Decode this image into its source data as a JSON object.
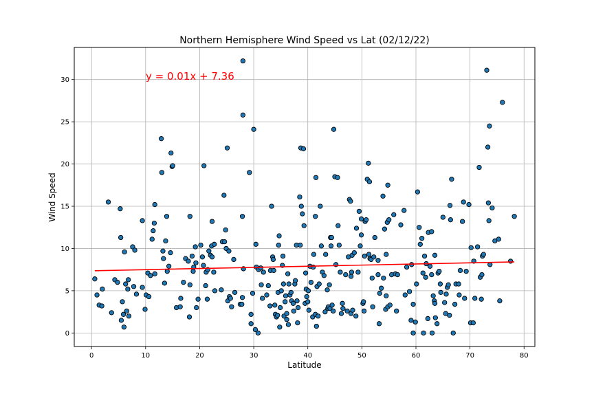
{
  "chart_data": {
    "type": "scatter",
    "title": "Northern Hemisphere Wind Speed vs Lat (02/12/22)",
    "xlabel": "Latitude",
    "ylabel": "Wind Speed",
    "xlim": [
      -3.2,
      82
    ],
    "ylim": [
      -1.6,
      33.8
    ],
    "xticks": [
      0,
      10,
      20,
      30,
      40,
      50,
      60,
      70,
      80
    ],
    "yticks": [
      0,
      5,
      10,
      15,
      20,
      25,
      30
    ],
    "grid": true,
    "marker_color": "#1f77b4",
    "marker_edge_color": "#000000",
    "regression": {
      "equation": "y = 0.01x + 7.36",
      "slope": 0.0135,
      "intercept": 7.36,
      "x_range": [
        0.6,
        78.2
      ],
      "color": "#ff0000"
    },
    "points": [
      [
        0.6,
        6.4
      ],
      [
        1,
        4.5
      ],
      [
        1.4,
        3.3
      ],
      [
        1.9,
        3.2
      ],
      [
        2,
        5.2
      ],
      [
        3.1,
        15.5
      ],
      [
        3.7,
        2.4
      ],
      [
        4.3,
        6.3
      ],
      [
        4.8,
        6
      ],
      [
        5.3,
        14.7
      ],
      [
        5.4,
        11.3
      ],
      [
        5.5,
        1.5
      ],
      [
        5.7,
        3.7
      ],
      [
        5.9,
        2.2
      ],
      [
        6,
        0.7
      ],
      [
        6.1,
        9.6
      ],
      [
        6.3,
        5.8
      ],
      [
        6.5,
        2.6
      ],
      [
        6.7,
        5.2
      ],
      [
        6.8,
        6.3
      ],
      [
        6.9,
        2
      ],
      [
        7.6,
        10.2
      ],
      [
        7.8,
        5.5
      ],
      [
        8,
        9.8
      ],
      [
        8.3,
        4.6
      ],
      [
        9.4,
        13.3
      ],
      [
        9.4,
        5.4
      ],
      [
        9.9,
        2.8
      ],
      [
        10.1,
        4.5
      ],
      [
        10.4,
        7.1
      ],
      [
        10.6,
        4.3
      ],
      [
        10.9,
        6.8
      ],
      [
        11.2,
        11.1
      ],
      [
        11.4,
        12.1
      ],
      [
        11.6,
        13
      ],
      [
        11.7,
        15.2
      ],
      [
        11.7,
        7
      ],
      [
        12.9,
        23
      ],
      [
        13,
        19
      ],
      [
        13.2,
        9.7
      ],
      [
        13.3,
        8.8
      ],
      [
        13.5,
        5.9
      ],
      [
        13.7,
        10.9
      ],
      [
        13.9,
        13.8
      ],
      [
        14,
        7.3
      ],
      [
        14.3,
        7.9
      ],
      [
        14.6,
        9.5
      ],
      [
        14.7,
        21.3
      ],
      [
        14.9,
        19.7
      ],
      [
        15,
        19.8
      ],
      [
        15.7,
        3
      ],
      [
        16.4,
        3.1
      ],
      [
        16.5,
        4.1
      ],
      [
        17,
        6
      ],
      [
        17.4,
        8.8
      ],
      [
        17.9,
        8.5
      ],
      [
        18.1,
        1.9
      ],
      [
        18.2,
        13.8
      ],
      [
        18.2,
        5.7
      ],
      [
        18.6,
        9.1
      ],
      [
        18.8,
        7.3
      ],
      [
        18.9,
        7.8
      ],
      [
        19.2,
        10.2
      ],
      [
        19.3,
        8.3
      ],
      [
        19.4,
        3
      ],
      [
        19.7,
        4
      ],
      [
        20.2,
        10.4
      ],
      [
        20.5,
        9
      ],
      [
        20.7,
        8
      ],
      [
        20.8,
        19.8
      ],
      [
        21.1,
        5.6
      ],
      [
        21.2,
        7.2
      ],
      [
        21.4,
        4
      ],
      [
        21.5,
        7.5
      ],
      [
        21.7,
        9.7
      ],
      [
        22,
        9.2
      ],
      [
        22.2,
        10.3
      ],
      [
        22.3,
        13.2
      ],
      [
        22.3,
        9
      ],
      [
        22.6,
        7.2
      ],
      [
        22.7,
        10.5
      ],
      [
        22.8,
        5
      ],
      [
        24,
        5.1
      ],
      [
        24.2,
        10.8
      ],
      [
        24.5,
        16.3
      ],
      [
        24.6,
        10.8
      ],
      [
        24.8,
        12.2
      ],
      [
        24.9,
        10
      ],
      [
        25.1,
        21.9
      ],
      [
        25.2,
        3.8
      ],
      [
        25.4,
        9.7
      ],
      [
        25.5,
        4.3
      ],
      [
        25.7,
        4.1
      ],
      [
        25.9,
        3.1
      ],
      [
        26.3,
        8.7
      ],
      [
        26.5,
        4.8
      ],
      [
        27.5,
        3.4
      ],
      [
        27.8,
        3.4
      ],
      [
        27.9,
        13.8
      ],
      [
        27.9,
        4.2
      ],
      [
        28,
        32.2
      ],
      [
        28,
        25.8
      ],
      [
        28.1,
        7.6
      ],
      [
        29.2,
        19
      ],
      [
        29.5,
        1.1
      ],
      [
        29.5,
        2.2
      ],
      [
        29.8,
        4.7
      ],
      [
        30,
        24.1
      ],
      [
        30.3,
        0.4
      ],
      [
        30.4,
        10.5
      ],
      [
        30.5,
        7.8
      ],
      [
        30.8,
        0
      ],
      [
        30.9,
        7.5
      ],
      [
        31.3,
        7.7
      ],
      [
        31.4,
        5.7
      ],
      [
        31.6,
        4.1
      ],
      [
        31.8,
        7.2
      ],
      [
        32.4,
        4.5
      ],
      [
        32.7,
        5.6
      ],
      [
        33,
        3.2
      ],
      [
        33.1,
        7.4
      ],
      [
        33.3,
        15
      ],
      [
        33.5,
        9
      ],
      [
        33.6,
        8.7
      ],
      [
        33.7,
        7.4
      ],
      [
        33.9,
        3.3
      ],
      [
        34,
        2.2
      ],
      [
        34.2,
        1.9
      ],
      [
        34.4,
        2.1
      ],
      [
        34.5,
        4.8
      ],
      [
        34.6,
        10.4
      ],
      [
        34.7,
        11.5
      ],
      [
        34.8,
        0.7
      ],
      [
        34.9,
        3
      ],
      [
        35.1,
        5
      ],
      [
        35.3,
        8
      ],
      [
        35.4,
        9.1
      ],
      [
        35.5,
        5.8
      ],
      [
        35.6,
        2
      ],
      [
        35.8,
        3.7
      ],
      [
        35.9,
        4.4
      ],
      [
        36.1,
        2.3
      ],
      [
        36.1,
        1.6
      ],
      [
        36.3,
        7
      ],
      [
        36.4,
        1
      ],
      [
        36.5,
        5.8
      ],
      [
        36.7,
        4.5
      ],
      [
        36.9,
        4.8
      ],
      [
        37,
        3.8
      ],
      [
        37.3,
        3.5
      ],
      [
        37.4,
        2.6
      ],
      [
        37.6,
        5.8
      ],
      [
        37.7,
        6.2
      ],
      [
        37.9,
        10.4
      ],
      [
        38,
        3.8
      ],
      [
        38.1,
        1.2
      ],
      [
        38.2,
        3
      ],
      [
        38.5,
        16.1
      ],
      [
        38.6,
        10.4
      ],
      [
        38.7,
        21.9
      ],
      [
        38.8,
        15
      ],
      [
        39,
        14.1
      ],
      [
        39.2,
        21.8
      ],
      [
        39.3,
        12.7
      ],
      [
        39.5,
        3.5
      ],
      [
        39.6,
        7.1
      ],
      [
        39.7,
        5.2
      ],
      [
        39.8,
        4.3
      ],
      [
        40,
        3.7
      ],
      [
        40.1,
        5
      ],
      [
        40.2,
        2.7
      ],
      [
        40.4,
        7.9
      ],
      [
        40.6,
        6
      ],
      [
        40.9,
        1.9
      ],
      [
        41,
        7.8
      ],
      [
        41.1,
        9.3
      ],
      [
        41.4,
        2.2
      ],
      [
        41.4,
        13.8
      ],
      [
        41.5,
        18.4
      ],
      [
        41.6,
        0.8
      ],
      [
        41.7,
        5.5
      ],
      [
        41.9,
        2
      ],
      [
        42.1,
        5.8
      ],
      [
        42.3,
        15
      ],
      [
        42.5,
        10.3
      ],
      [
        42.7,
        7.2
      ],
      [
        43,
        6.8
      ],
      [
        43.2,
        2.5
      ],
      [
        43.3,
        9.3
      ],
      [
        43.6,
        5.1
      ],
      [
        43.7,
        2.9
      ],
      [
        43.8,
        3.1
      ],
      [
        44,
        5.7
      ],
      [
        44.1,
        2.9
      ],
      [
        44.2,
        11.3
      ],
      [
        44.3,
        10.3
      ],
      [
        44.4,
        11.3
      ],
      [
        44.5,
        3.3
      ],
      [
        44.7,
        2.6
      ],
      [
        44.8,
        24.1
      ],
      [
        45,
        18.5
      ],
      [
        45.2,
        8.1
      ],
      [
        45.5,
        18.4
      ],
      [
        45.6,
        12.7
      ],
      [
        45.8,
        10.4
      ],
      [
        46,
        7.2
      ],
      [
        46.2,
        2.3
      ],
      [
        46.4,
        3.5
      ],
      [
        46.5,
        2.9
      ],
      [
        47,
        6.9
      ],
      [
        47.3,
        2.6
      ],
      [
        47.5,
        9
      ],
      [
        47.7,
        15.8
      ],
      [
        47.9,
        15.6
      ],
      [
        48,
        2.3
      ],
      [
        48,
        6.7
      ],
      [
        48.1,
        7.2
      ],
      [
        48.2,
        9.2
      ],
      [
        48.3,
        2.7
      ],
      [
        48.6,
        9.5
      ],
      [
        48.9,
        2
      ],
      [
        49,
        12.4
      ],
      [
        49.3,
        7.2
      ],
      [
        49.5,
        14.4
      ],
      [
        49.7,
        10.3
      ],
      [
        49.9,
        13.5
      ],
      [
        49.9,
        11.6
      ],
      [
        50.2,
        3.5
      ],
      [
        50.3,
        3.7
      ],
      [
        50.4,
        2.6
      ],
      [
        50.5,
        9.1
      ],
      [
        50.6,
        13.2
      ],
      [
        50.8,
        13.4
      ],
      [
        51,
        18.2
      ],
      [
        51.2,
        20.1
      ],
      [
        51.3,
        9.3
      ],
      [
        51.4,
        17.9
      ],
      [
        51.5,
        8.8
      ],
      [
        51.7,
        8.7
      ],
      [
        51.9,
        6.5
      ],
      [
        52,
        3.1
      ],
      [
        52.2,
        9
      ],
      [
        52.4,
        11.3
      ],
      [
        53,
        6.9
      ],
      [
        53,
        8.6
      ],
      [
        53.2,
        1.1
      ],
      [
        53.3,
        4.7
      ],
      [
        53.6,
        5.3
      ],
      [
        53.9,
        16.2
      ],
      [
        54,
        6.5
      ],
      [
        54.2,
        12.3
      ],
      [
        54.4,
        2.8
      ],
      [
        54.5,
        4.4
      ],
      [
        54.5,
        9.3
      ],
      [
        54.7,
        13.1
      ],
      [
        54.8,
        17.5
      ],
      [
        54.8,
        3.1
      ],
      [
        55,
        13.4
      ],
      [
        55.2,
        3.3
      ],
      [
        55.5,
        6.9
      ],
      [
        55.9,
        14
      ],
      [
        56.2,
        7
      ],
      [
        56.4,
        2.6
      ],
      [
        56.6,
        6.9
      ],
      [
        57.2,
        12.8
      ],
      [
        57.8,
        14.5
      ],
      [
        58,
        4.5
      ],
      [
        58.3,
        7.8
      ],
      [
        58.8,
        4.9
      ],
      [
        59.1,
        1.5
      ],
      [
        59.2,
        8.1
      ],
      [
        59.5,
        3.4
      ],
      [
        59.5,
        0
      ],
      [
        59.9,
        1.3
      ],
      [
        60.1,
        5.8
      ],
      [
        60.3,
        16.7
      ],
      [
        60.6,
        12.5
      ],
      [
        60.8,
        10.5
      ],
      [
        61.1,
        11.2
      ],
      [
        61.3,
        7.1
      ],
      [
        61.4,
        0
      ],
      [
        61.6,
        9.1
      ],
      [
        61.8,
        6.6
      ],
      [
        61.9,
        8.2
      ],
      [
        62.2,
        1.7
      ],
      [
        62.3,
        11.9
      ],
      [
        62.6,
        7.9
      ],
      [
        62.9,
        6.9
      ],
      [
        62.9,
        12
      ],
      [
        63,
        0
      ],
      [
        63.2,
        4.4
      ],
      [
        63.4,
        3.8
      ],
      [
        63.5,
        3.5
      ],
      [
        63.5,
        9.2
      ],
      [
        63.6,
        1.8
      ],
      [
        63.9,
        1.1
      ],
      [
        64.1,
        7.1
      ],
      [
        64.3,
        7.3
      ],
      [
        64.5,
        5.8
      ],
      [
        64.6,
        4.8
      ],
      [
        65,
        13.7
      ],
      [
        65.3,
        3.6
      ],
      [
        65.5,
        2.3
      ],
      [
        65.6,
        4.6
      ],
      [
        65.8,
        5.4
      ],
      [
        66,
        5.7
      ],
      [
        66.2,
        2.1
      ],
      [
        66.3,
        15.1
      ],
      [
        66.4,
        13.4
      ],
      [
        66.6,
        18.2
      ],
      [
        66.9,
        0
      ],
      [
        67.2,
        3.4
      ],
      [
        67.4,
        5.8
      ],
      [
        67.9,
        5.8
      ],
      [
        68,
        4.5
      ],
      [
        68.2,
        7.4
      ],
      [
        68.6,
        13.2
      ],
      [
        68.8,
        15.5
      ],
      [
        69,
        4.1
      ],
      [
        69.3,
        7.3
      ],
      [
        69.8,
        15.2
      ],
      [
        70.1,
        1.2
      ],
      [
        70.2,
        10.1
      ],
      [
        70.6,
        1.2
      ],
      [
        70.7,
        8.5
      ],
      [
        70.9,
        4.1
      ],
      [
        71.4,
        10.2
      ],
      [
        71.7,
        19.6
      ],
      [
        71.9,
        6.6
      ],
      [
        72.1,
        4
      ],
      [
        72.2,
        6.9
      ],
      [
        72.3,
        9.1
      ],
      [
        72.5,
        9.3
      ],
      [
        73.1,
        31.1
      ],
      [
        73.3,
        22
      ],
      [
        73.4,
        15.4
      ],
      [
        73.5,
        13.3
      ],
      [
        73.6,
        24.5
      ],
      [
        73.7,
        8.1
      ],
      [
        74.1,
        14.8
      ],
      [
        74.6,
        10.9
      ],
      [
        75.3,
        11.1
      ],
      [
        75.5,
        3.8
      ],
      [
        76,
        27.3
      ],
      [
        77.5,
        8.5
      ],
      [
        78.2,
        13.8
      ]
    ]
  }
}
